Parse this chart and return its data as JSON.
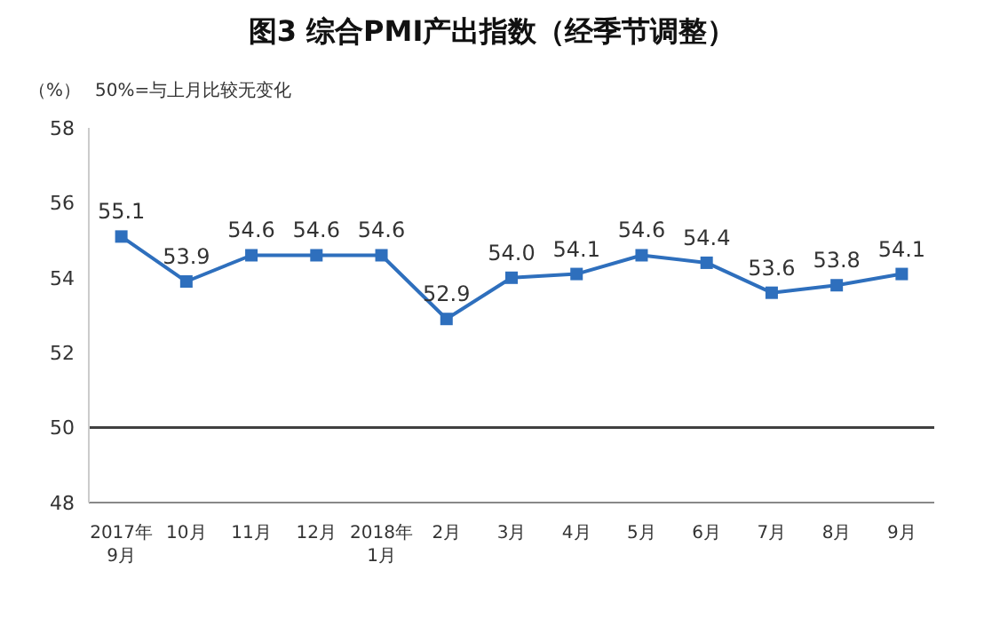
{
  "chart_data": {
    "type": "line",
    "title": "图3 综合PMI产出指数（经季节调整）",
    "ylabel": "（%）",
    "annotations": [
      "50%=与上月比较无变化"
    ],
    "categories": [
      "2017年\n9月",
      "10月",
      "11月",
      "12月",
      "2018年\n1月",
      "2月",
      "3月",
      "4月",
      "5月",
      "6月",
      "7月",
      "8月",
      "9月"
    ],
    "series": [
      {
        "color": "#2e6fbd",
        "values": [
          55.1,
          53.9,
          54.6,
          54.6,
          54.6,
          52.9,
          54.0,
          54.1,
          54.6,
          54.4,
          53.6,
          53.8,
          54.1
        ],
        "value_labels": [
          "55.1",
          "53.9",
          "54.6",
          "54.6",
          "54.6",
          "52.9",
          "54.0",
          "54.1",
          "54.6",
          "54.4",
          "53.6",
          "53.8",
          "54.1"
        ]
      }
    ],
    "ylim": [
      48,
      58
    ],
    "yticks": [
      48,
      50,
      52,
      54,
      56,
      58
    ],
    "grid": false,
    "legend": false,
    "marker": "square",
    "line_style": "solid",
    "ref_lines": [
      {
        "axis": "y",
        "value": 50,
        "color": "#404040"
      }
    ]
  }
}
